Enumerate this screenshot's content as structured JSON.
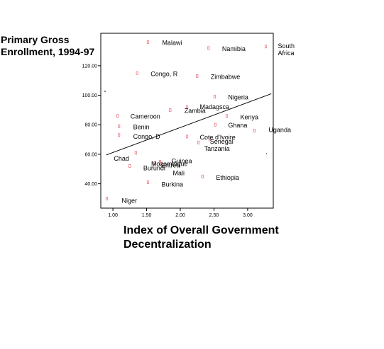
{
  "chart_data": {
    "type": "scatter",
    "title": "",
    "ylabel": [
      "Primary Gross",
      "Enrollment, 1994-97"
    ],
    "xlabel": [
      "Index of Overall Government",
      "Decentralization"
    ],
    "xlim": [
      0.82,
      3.38
    ],
    "ylim": [
      23.5,
      142
    ],
    "xticks": [
      "1.00",
      "1.50",
      "2.00",
      "2.50",
      "3.00"
    ],
    "xtick_values": [
      1.0,
      1.5,
      2.0,
      2.5,
      3.0
    ],
    "yticks": [
      "40.00",
      "60.00",
      "80.00",
      "100.00",
      "120.00"
    ],
    "ytick_values": [
      40,
      60,
      80,
      100,
      120
    ],
    "grid": false,
    "marker_color": "#e87a85",
    "fit_line": {
      "x": [
        0.9,
        3.35
      ],
      "y": [
        59.5,
        101
      ]
    },
    "points": [
      {
        "label": "Malawi",
        "x": 1.52,
        "y": 136
      },
      {
        "label": "Namibia",
        "x": 2.42,
        "y": 132
      },
      {
        "label": "South Africa",
        "x": 3.27,
        "y": 133
      },
      {
        "label": "Congo, R",
        "x": 1.36,
        "y": 115
      },
      {
        "label": "Zimbabwe",
        "x": 2.25,
        "y": 113
      },
      {
        "label": "Nigeria",
        "x": 2.51,
        "y": 99
      },
      {
        "label": "Madagsca",
        "x": 2.1,
        "y": 92
      },
      {
        "label": "Zambia",
        "x": 1.85,
        "y": 90
      },
      {
        "label": "Cameroon",
        "x": 1.07,
        "y": 86
      },
      {
        "label": "Kenya",
        "x": 2.69,
        "y": 86
      },
      {
        "label": "Benin",
        "x": 1.09,
        "y": 79
      },
      {
        "label": "Ghana",
        "x": 2.52,
        "y": 80
      },
      {
        "label": "Congo, D",
        "x": 1.09,
        "y": 73
      },
      {
        "label": "Uganda",
        "x": 3.1,
        "y": 76
      },
      {
        "label": "Cote d'Ivoire",
        "x": 2.1,
        "y": 72
      },
      {
        "label": "Senegal",
        "x": 2.44,
        "y": 70
      },
      {
        "label": "Tanzania",
        "x": 2.27,
        "y": 68
      },
      {
        "label": "Chad",
        "x": 1.34,
        "y": 61
      },
      {
        "label": "Mozambique",
        "x": 1.62,
        "y": 54
      },
      {
        "label": "Guinea",
        "x": 1.7,
        "y": 55
      },
      {
        "label": "Eritrea",
        "x": 1.62,
        "y": 54
      },
      {
        "label": "Burundi",
        "x": 1.25,
        "y": 52
      },
      {
        "label": "Mali",
        "x": 1.7,
        "y": 54
      },
      {
        "label": "Ethiopia",
        "x": 2.33,
        "y": 45
      },
      {
        "label": "Burkina",
        "x": 1.52,
        "y": 41
      },
      {
        "label": "Niger",
        "x": 0.91,
        "y": 30
      }
    ]
  }
}
